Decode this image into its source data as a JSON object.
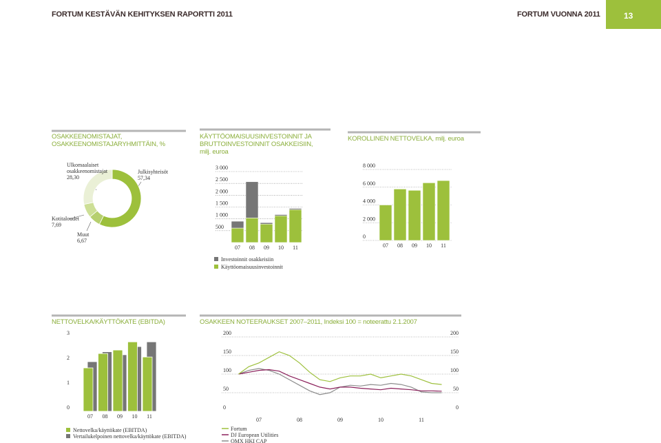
{
  "header": {
    "left": "FORTUM KESTÄVÄN KEHITYKSEN RAPORTTI 2011",
    "right": "FORTUM VUONNA 2011",
    "page": "13"
  },
  "chart_data": [
    {
      "type": "pie",
      "title": "OSAKKEENOMISTAJAT, OSAKKEENOMISTAJARYHMITTÄIN, %",
      "categories": [
        "Julkisyhteisöt",
        "Muut",
        "Kotitaloudet",
        "Ulkomaalaiset osakkeenomistajat"
      ],
      "values": [
        57.34,
        6.67,
        7.69,
        28.3
      ],
      "value_labels": [
        "57,34",
        "6,67",
        "7,69",
        "28,30"
      ],
      "colors": [
        "#9dc03c",
        "#b6cf6e",
        "#cddf96",
        "#eaf0d6"
      ]
    },
    {
      "type": "bar",
      "stacked": true,
      "title": "KÄYTTÖOMAISUUSINVESTOINNIT JA BRUTTOINVESTOINNIT OSAKKEISIIN, milj. euroa",
      "categories": [
        "07",
        "08",
        "09",
        "10",
        "11"
      ],
      "series": [
        {
          "name": "Käyttöomaisuusinvestoinnit",
          "color": "#9dc03c",
          "values": [
            610,
            1040,
            780,
            1130,
            1390
          ]
        },
        {
          "name": "Investoinnit osakkeisiin",
          "color": "#767676",
          "values": [
            290,
            1530,
            60,
            50,
            50
          ]
        }
      ],
      "ylim": [
        0,
        3000
      ],
      "yticks": [
        {
          "value": 500,
          "label": "500"
        },
        {
          "value": 1000,
          "label": "1 000"
        },
        {
          "value": 1500,
          "label": "1 500"
        },
        {
          "value": 2000,
          "label": "2 000"
        },
        {
          "value": 2500,
          "label": "2 500"
        },
        {
          "value": 3000,
          "label": "3 000"
        }
      ],
      "grid": true
    },
    {
      "type": "bar",
      "title": "KOROLLINEN NETTOVELKA, milj. euroa",
      "categories": [
        "07",
        "08",
        "09",
        "10",
        "11"
      ],
      "series": [
        {
          "name": null,
          "color": "#9dc03c",
          "values": [
            4000,
            5800,
            5650,
            6500,
            6750
          ]
        }
      ],
      "ylim": [
        0,
        8000
      ],
      "yticks": [
        0,
        {
          "value": 2000,
          "label": "2 000"
        },
        {
          "value": 4000,
          "label": "4 000"
        },
        {
          "value": 6000,
          "label": "6 000"
        },
        {
          "value": 8000,
          "label": "8 000"
        }
      ],
      "grid": true
    },
    {
      "type": "bar",
      "grouped": true,
      "title": "NETTOVELKA/KÄYTTÖKATE (EBITDA)",
      "categories": [
        "07",
        "08",
        "09",
        "10",
        "11"
      ],
      "series": [
        {
          "name": "Nettovelka/käyttökate (EBITDA)",
          "color": "#9dc03c",
          "values": [
            1.75,
            2.33,
            2.47,
            2.8,
            2.19
          ]
        },
        {
          "name": "Vertailukelpoinen nettovelka/käyttökate (EBITDA)",
          "color": "#767676",
          "values": [
            2.0,
            2.4,
            2.28,
            2.61,
            2.8
          ]
        }
      ],
      "ylim": [
        0,
        3
      ],
      "yticks": [
        0,
        1,
        2,
        3
      ],
      "grid": false
    },
    {
      "type": "line",
      "title": "OSAKKEEN NOTEERAUKSET 2007–2011, Indeksi 100 = noteerattu 2.1.2007",
      "x": [
        2007,
        2007.25,
        2007.5,
        2007.75,
        2008,
        2008.25,
        2008.5,
        2008.75,
        2009,
        2009.25,
        2009.5,
        2009.75,
        2010,
        2010.25,
        2010.5,
        2010.75,
        2011,
        2011.25,
        2011.5,
        2011.75,
        2012
      ],
      "xlim": [
        2007,
        2012
      ],
      "xticks": [
        {
          "value": 2007.5,
          "label": "07"
        },
        {
          "value": 2008.5,
          "label": "08"
        },
        {
          "value": 2009.5,
          "label": "09"
        },
        {
          "value": 2010.5,
          "label": "10"
        },
        {
          "value": 2011.5,
          "label": "11"
        }
      ],
      "series": [
        {
          "name": "Fortum",
          "color": "#9dc03c",
          "values": [
            100,
            120,
            130,
            145,
            160,
            150,
            130,
            105,
            85,
            80,
            90,
            95,
            95,
            100,
            90,
            95,
            100,
            95,
            85,
            75,
            72
          ]
        },
        {
          "name": "DJ European Utilities",
          "color": "#8a1f5a",
          "values": [
            100,
            105,
            110,
            112,
            108,
            95,
            85,
            75,
            65,
            60,
            65,
            65,
            62,
            60,
            58,
            62,
            60,
            58,
            55,
            55,
            54
          ]
        },
        {
          "name": "OMX HKI CAP",
          "color": "#8c8c8c",
          "values": [
            100,
            110,
            115,
            110,
            100,
            85,
            70,
            55,
            45,
            50,
            65,
            70,
            68,
            72,
            70,
            75,
            72,
            65,
            52,
            50,
            50
          ]
        }
      ],
      "ylim": [
        0,
        200
      ],
      "yticks": [
        0,
        50,
        100,
        150,
        200
      ],
      "grid": true
    }
  ]
}
